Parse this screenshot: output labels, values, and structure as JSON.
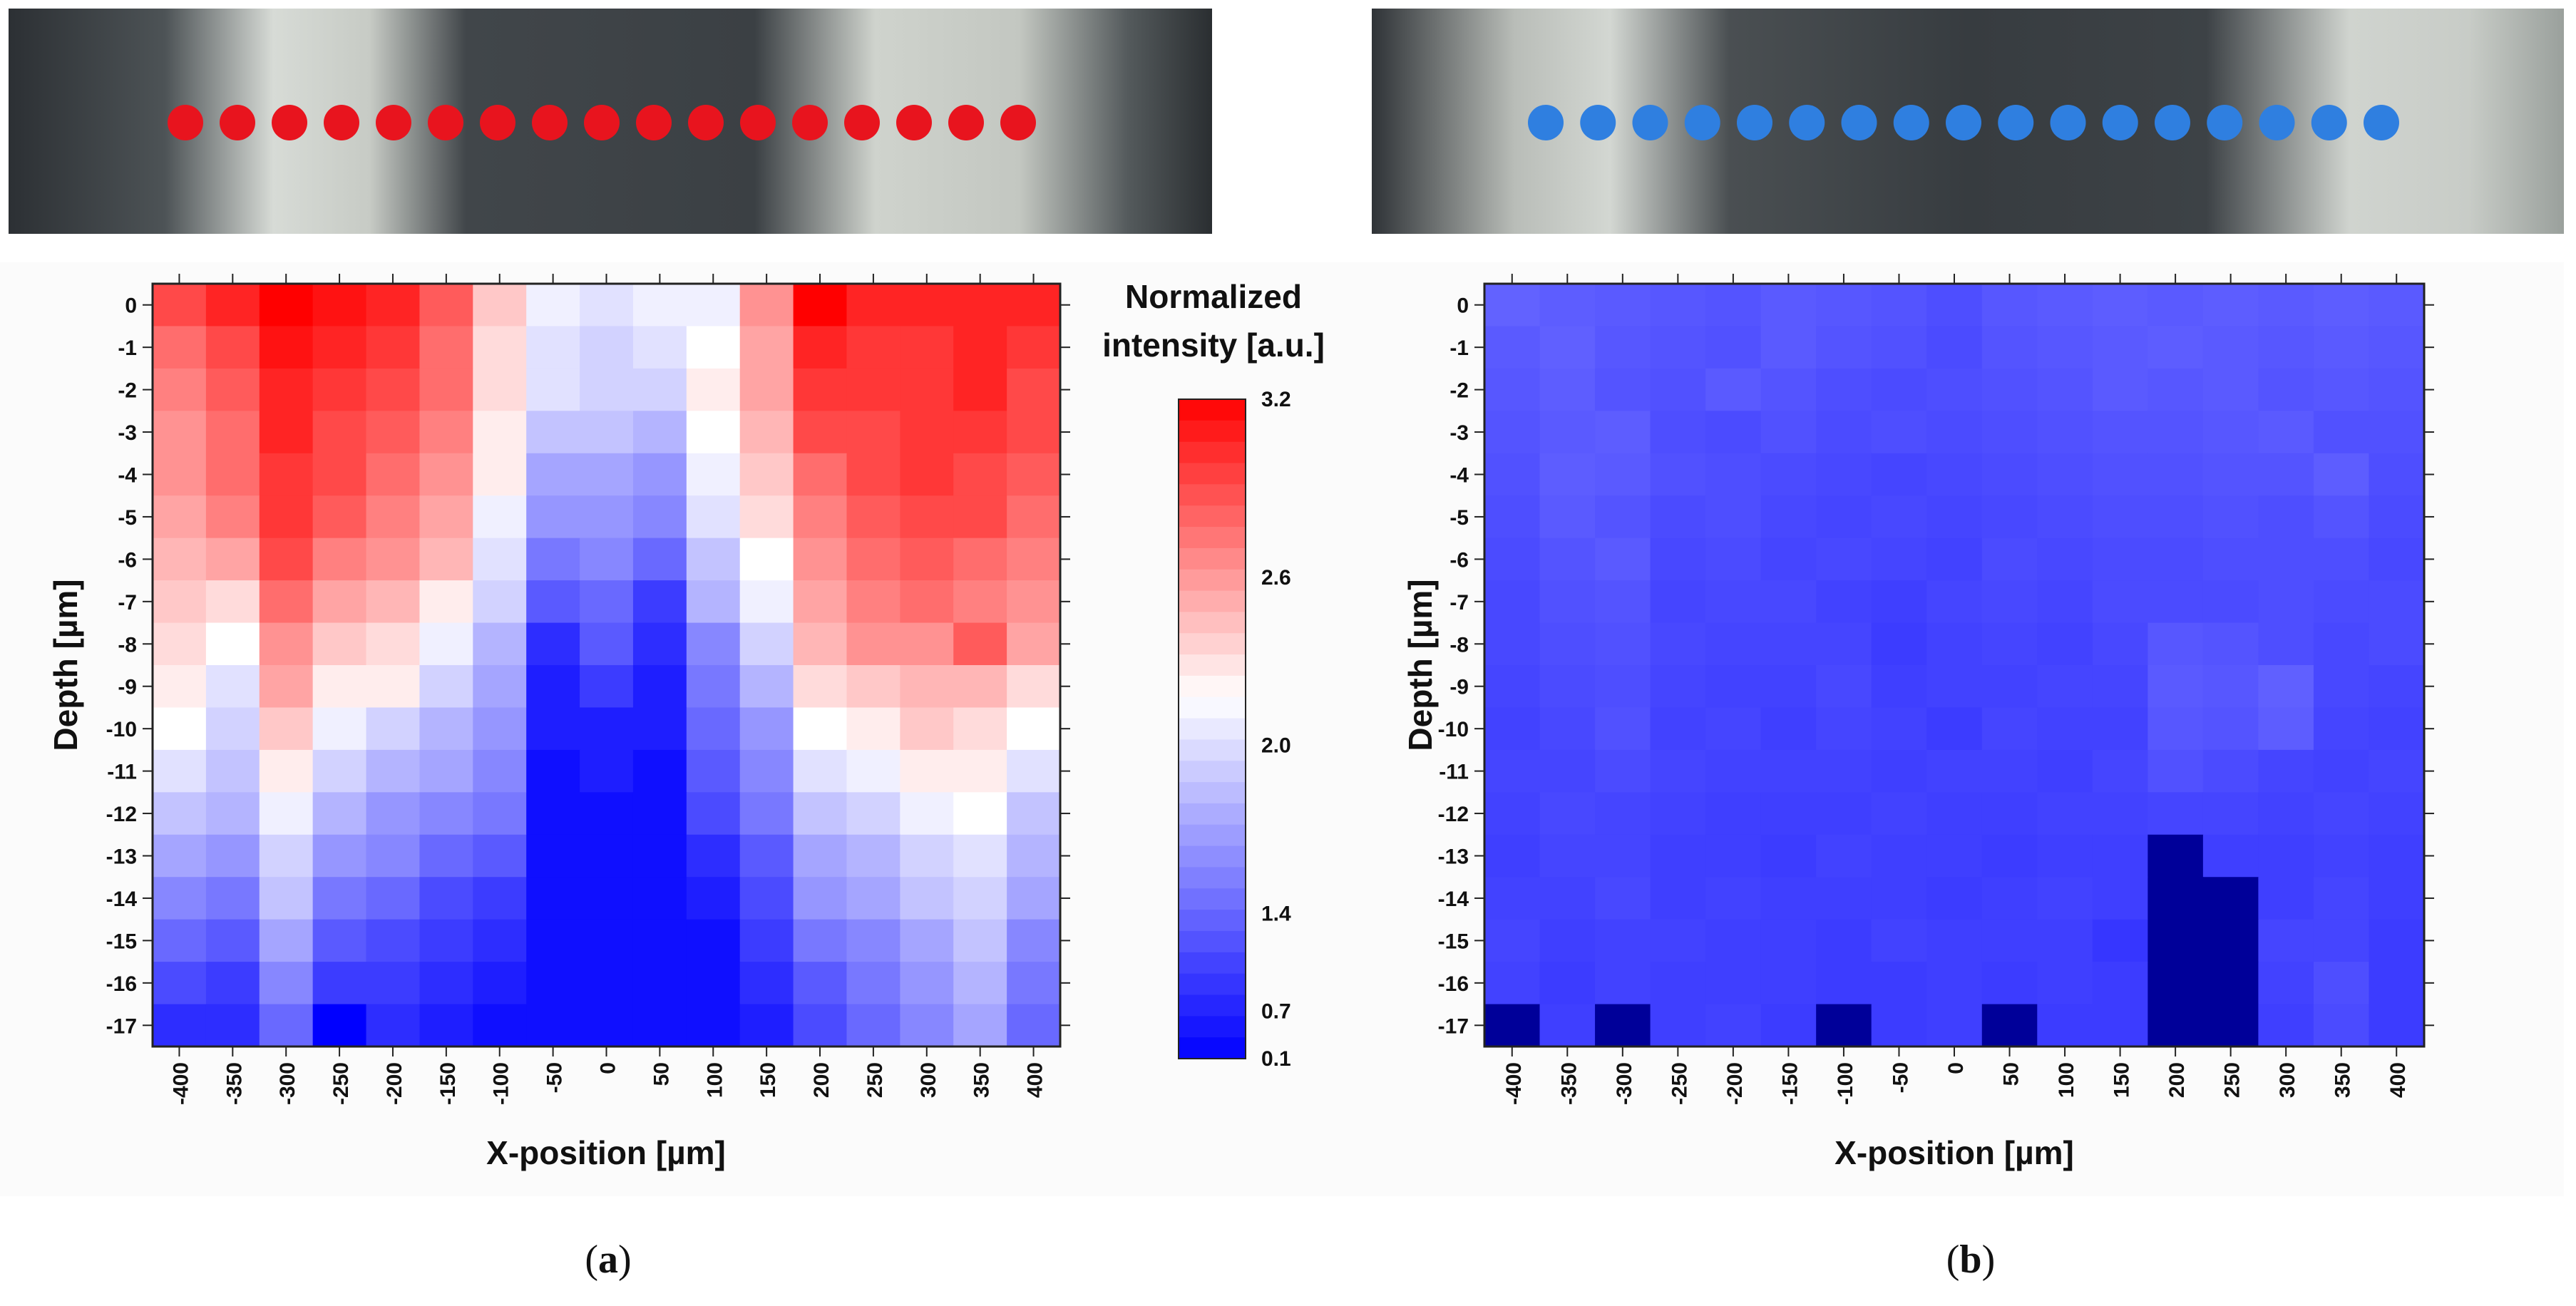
{
  "figure": {
    "panels": [
      {
        "id": "a",
        "label_open": "(",
        "label_letter": "a",
        "label_close": ")"
      },
      {
        "id": "b",
        "label_open": "(",
        "label_letter": "b",
        "label_close": ")"
      }
    ],
    "colorbar": {
      "title_line1": "Normalized",
      "title_line2": "intensity [a.u.]",
      "ticks": [
        "3.2",
        "2.6",
        "2.0",
        "1.4",
        "0.7",
        "0.1"
      ],
      "range": [
        0.1,
        3.2
      ],
      "colors": {
        "low": "#0000ff",
        "mid": "#ffffff",
        "high": "#ff0000"
      }
    },
    "photo_strips": [
      {
        "panel": "a",
        "dot_color": "#e8141e",
        "dot_count": 17
      },
      {
        "panel": "b",
        "dot_color": "#2f7fe0",
        "dot_count": 17
      }
    ]
  },
  "chart_data": [
    {
      "type": "heatmap",
      "panel": "a",
      "xlabel": "X-position [µm]",
      "ylabel": "Depth [µm]",
      "x": [
        -400,
        -350,
        -300,
        -250,
        -200,
        -150,
        -100,
        -50,
        0,
        50,
        100,
        150,
        200,
        250,
        300,
        350,
        400
      ],
      "y": [
        0,
        -1,
        -2,
        -3,
        -4,
        -5,
        -6,
        -7,
        -8,
        -9,
        -10,
        -11,
        -12,
        -13,
        -14,
        -15,
        -16,
        -17
      ],
      "xticklabels": [
        "-400",
        "-350",
        "-300",
        "-250",
        "-200",
        "-150",
        "-100",
        "-50",
        "0",
        "50",
        "100",
        "150",
        "200",
        "250",
        "300",
        "350",
        "400"
      ],
      "yticklabels": [
        "0",
        "-1",
        "-2",
        "-3",
        "-4",
        "-5",
        "-6",
        "-7",
        "-8",
        "-9",
        "-10",
        "-11",
        "-12",
        "-13",
        "-14",
        "-15",
        "-16",
        "-17"
      ],
      "zlim": [
        0.1,
        3.2
      ],
      "z": [
        [
          2.8,
          3.0,
          3.2,
          3.1,
          3.0,
          2.7,
          2.1,
          1.7,
          1.6,
          1.7,
          1.7,
          2.4,
          3.2,
          3.0,
          3.0,
          3.0,
          3.0
        ],
        [
          2.6,
          2.8,
          3.1,
          3.0,
          2.9,
          2.6,
          2.0,
          1.6,
          1.5,
          1.6,
          1.8,
          2.3,
          3.0,
          2.9,
          2.9,
          3.0,
          2.9
        ],
        [
          2.5,
          2.7,
          3.0,
          2.9,
          2.8,
          2.6,
          2.0,
          1.6,
          1.5,
          1.5,
          1.9,
          2.3,
          2.9,
          2.9,
          2.9,
          3.0,
          2.8
        ],
        [
          2.4,
          2.6,
          3.0,
          2.8,
          2.7,
          2.5,
          1.9,
          1.4,
          1.4,
          1.3,
          1.8,
          2.2,
          2.8,
          2.8,
          2.9,
          2.9,
          2.8
        ],
        [
          2.4,
          2.6,
          2.9,
          2.8,
          2.6,
          2.4,
          1.9,
          1.2,
          1.2,
          1.1,
          1.7,
          2.1,
          2.6,
          2.8,
          2.9,
          2.8,
          2.7
        ],
        [
          2.3,
          2.5,
          2.9,
          2.7,
          2.5,
          2.3,
          1.7,
          1.1,
          1.1,
          1.0,
          1.6,
          2.0,
          2.5,
          2.7,
          2.8,
          2.8,
          2.6
        ],
        [
          2.2,
          2.3,
          2.8,
          2.5,
          2.4,
          2.2,
          1.6,
          0.9,
          1.0,
          0.8,
          1.4,
          1.8,
          2.4,
          2.6,
          2.7,
          2.6,
          2.5
        ],
        [
          2.1,
          2.0,
          2.6,
          2.3,
          2.2,
          1.9,
          1.5,
          0.7,
          0.8,
          0.5,
          1.3,
          1.7,
          2.3,
          2.5,
          2.6,
          2.5,
          2.4
        ],
        [
          2.0,
          1.8,
          2.4,
          2.1,
          2.0,
          1.7,
          1.3,
          0.4,
          0.7,
          0.4,
          1.0,
          1.5,
          2.2,
          2.4,
          2.4,
          2.7,
          2.3
        ],
        [
          1.9,
          1.6,
          2.3,
          1.9,
          1.9,
          1.5,
          1.2,
          0.3,
          0.5,
          0.3,
          0.9,
          1.3,
          2.0,
          2.1,
          2.2,
          2.2,
          2.0
        ],
        [
          1.8,
          1.5,
          2.1,
          1.7,
          1.5,
          1.3,
          1.1,
          0.3,
          0.3,
          0.3,
          0.8,
          1.1,
          1.8,
          1.9,
          2.1,
          2.0,
          1.8
        ],
        [
          1.6,
          1.4,
          1.9,
          1.5,
          1.3,
          1.2,
          1.0,
          0.2,
          0.3,
          0.2,
          0.7,
          1.0,
          1.6,
          1.7,
          1.9,
          1.9,
          1.6
        ],
        [
          1.4,
          1.3,
          1.7,
          1.3,
          1.1,
          1.0,
          0.9,
          0.2,
          0.2,
          0.2,
          0.6,
          0.9,
          1.4,
          1.5,
          1.7,
          1.8,
          1.4
        ],
        [
          1.2,
          1.1,
          1.5,
          1.1,
          1.0,
          0.8,
          0.7,
          0.2,
          0.2,
          0.2,
          0.4,
          0.7,
          1.2,
          1.3,
          1.5,
          1.6,
          1.3
        ],
        [
          1.0,
          0.9,
          1.4,
          0.9,
          0.8,
          0.6,
          0.5,
          0.2,
          0.2,
          0.2,
          0.3,
          0.6,
          1.1,
          1.2,
          1.4,
          1.5,
          1.2
        ],
        [
          0.8,
          0.7,
          1.2,
          0.7,
          0.6,
          0.5,
          0.4,
          0.2,
          0.2,
          0.2,
          0.2,
          0.5,
          0.9,
          1.0,
          1.2,
          1.4,
          1.0
        ],
        [
          0.6,
          0.5,
          1.0,
          0.5,
          0.5,
          0.4,
          0.3,
          0.2,
          0.2,
          0.2,
          0.2,
          0.4,
          0.7,
          0.9,
          1.1,
          1.3,
          0.9
        ],
        [
          0.4,
          0.4,
          0.8,
          0.1,
          0.4,
          0.3,
          0.2,
          0.2,
          0.2,
          0.2,
          0.2,
          0.3,
          0.6,
          0.8,
          1.0,
          1.2,
          0.8
        ]
      ]
    },
    {
      "type": "heatmap",
      "panel": "b",
      "xlabel": "X-position [µm]",
      "ylabel": "Depth [µm]",
      "x": [
        -400,
        -350,
        -300,
        -250,
        -200,
        -150,
        -100,
        -50,
        0,
        50,
        100,
        150,
        200,
        250,
        300,
        350,
        400
      ],
      "y": [
        0,
        -1,
        -2,
        -3,
        -4,
        -5,
        -6,
        -7,
        -8,
        -9,
        -10,
        -11,
        -12,
        -13,
        -14,
        -15,
        -16,
        -17
      ],
      "xticklabels": [
        "-400",
        "-350",
        "-300",
        "-250",
        "-200",
        "-150",
        "-100",
        "-50",
        "0",
        "50",
        "100",
        "150",
        "200",
        "250",
        "300",
        "350",
        "400"
      ],
      "yticklabels": [
        "0",
        "-1",
        "-2",
        "-3",
        "-4",
        "-5",
        "-6",
        "-7",
        "-8",
        "-9",
        "-10",
        "-11",
        "-12",
        "-13",
        "-14",
        "-15",
        "-16",
        "-17"
      ],
      "zlim": [
        0.1,
        3.2
      ],
      "z": [
        [
          0.75,
          0.72,
          0.7,
          0.68,
          0.66,
          0.7,
          0.68,
          0.66,
          0.62,
          0.68,
          0.7,
          0.72,
          0.7,
          0.72,
          0.7,
          0.72,
          0.7
        ],
        [
          0.7,
          0.74,
          0.68,
          0.66,
          0.64,
          0.7,
          0.66,
          0.64,
          0.6,
          0.66,
          0.68,
          0.7,
          0.72,
          0.7,
          0.68,
          0.7,
          0.68
        ],
        [
          0.68,
          0.72,
          0.66,
          0.64,
          0.7,
          0.66,
          0.62,
          0.6,
          0.62,
          0.64,
          0.66,
          0.7,
          0.68,
          0.7,
          0.66,
          0.68,
          0.66
        ],
        [
          0.66,
          0.7,
          0.72,
          0.62,
          0.6,
          0.64,
          0.6,
          0.62,
          0.6,
          0.62,
          0.64,
          0.66,
          0.66,
          0.68,
          0.7,
          0.64,
          0.64
        ],
        [
          0.64,
          0.72,
          0.7,
          0.64,
          0.62,
          0.6,
          0.58,
          0.56,
          0.58,
          0.6,
          0.62,
          0.64,
          0.64,
          0.66,
          0.66,
          0.72,
          0.62
        ],
        [
          0.62,
          0.7,
          0.66,
          0.6,
          0.62,
          0.58,
          0.56,
          0.58,
          0.56,
          0.58,
          0.6,
          0.62,
          0.62,
          0.64,
          0.62,
          0.66,
          0.6
        ],
        [
          0.6,
          0.66,
          0.7,
          0.58,
          0.6,
          0.56,
          0.58,
          0.56,
          0.54,
          0.6,
          0.58,
          0.6,
          0.6,
          0.62,
          0.62,
          0.62,
          0.58
        ],
        [
          0.58,
          0.64,
          0.66,
          0.56,
          0.58,
          0.58,
          0.54,
          0.52,
          0.56,
          0.58,
          0.56,
          0.6,
          0.6,
          0.6,
          0.62,
          0.6,
          0.6
        ],
        [
          0.58,
          0.62,
          0.64,
          0.58,
          0.56,
          0.56,
          0.56,
          0.5,
          0.54,
          0.56,
          0.54,
          0.58,
          0.68,
          0.66,
          0.62,
          0.58,
          0.6
        ],
        [
          0.56,
          0.6,
          0.62,
          0.56,
          0.54,
          0.54,
          0.58,
          0.52,
          0.54,
          0.54,
          0.56,
          0.56,
          0.7,
          0.68,
          0.74,
          0.58,
          0.56
        ],
        [
          0.54,
          0.58,
          0.64,
          0.54,
          0.56,
          0.52,
          0.56,
          0.54,
          0.5,
          0.56,
          0.54,
          0.54,
          0.68,
          0.66,
          0.72,
          0.56,
          0.54
        ],
        [
          0.56,
          0.56,
          0.6,
          0.56,
          0.54,
          0.54,
          0.54,
          0.52,
          0.54,
          0.54,
          0.52,
          0.56,
          0.64,
          0.6,
          0.56,
          0.54,
          0.56
        ],
        [
          0.54,
          0.58,
          0.56,
          0.54,
          0.52,
          0.52,
          0.52,
          0.54,
          0.52,
          0.52,
          0.54,
          0.54,
          0.56,
          0.56,
          0.54,
          0.56,
          0.54
        ],
        [
          0.52,
          0.56,
          0.56,
          0.52,
          0.52,
          0.5,
          0.54,
          0.52,
          0.52,
          0.5,
          0.52,
          0.52,
          0.2,
          0.52,
          0.52,
          0.54,
          0.52
        ],
        [
          0.54,
          0.54,
          0.58,
          0.52,
          0.54,
          0.52,
          0.52,
          0.52,
          0.5,
          0.52,
          0.54,
          0.52,
          0.2,
          0.2,
          0.52,
          0.56,
          0.52
        ],
        [
          0.56,
          0.52,
          0.54,
          0.54,
          0.52,
          0.52,
          0.5,
          0.54,
          0.52,
          0.52,
          0.52,
          0.46,
          0.2,
          0.2,
          0.56,
          0.56,
          0.5
        ],
        [
          0.54,
          0.5,
          0.54,
          0.52,
          0.52,
          0.52,
          0.5,
          0.5,
          0.52,
          0.5,
          0.52,
          0.5,
          0.2,
          0.2,
          0.54,
          0.62,
          0.5
        ],
        [
          0.2,
          0.52,
          0.2,
          0.52,
          0.54,
          0.5,
          0.2,
          0.5,
          0.52,
          0.2,
          0.5,
          0.5,
          0.2,
          0.2,
          0.52,
          0.6,
          0.5
        ]
      ]
    }
  ]
}
